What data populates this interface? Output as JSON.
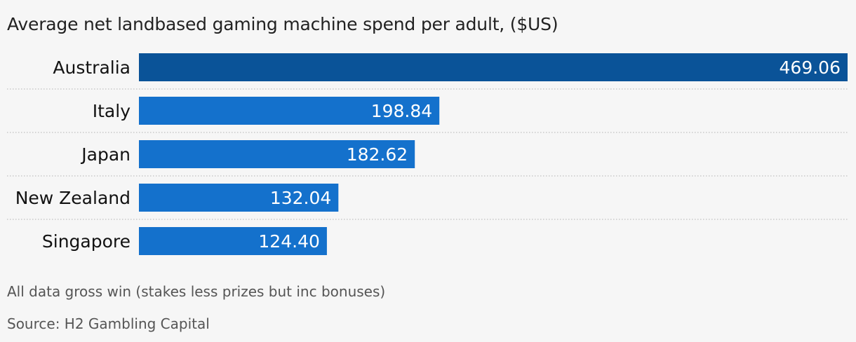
{
  "chart_data": {
    "type": "bar",
    "orientation": "horizontal",
    "title": "Average net landbased gaming machine spend per adult, ($US)",
    "categories": [
      "Australia",
      "Italy",
      "Japan",
      "New Zealand",
      "Singapore"
    ],
    "values": [
      469.06,
      198.84,
      182.62,
      132.04,
      124.4
    ],
    "value_labels": [
      "469.06",
      "198.84",
      "182.62",
      "132.04",
      "124.40"
    ],
    "xlim": [
      0,
      469.06
    ],
    "grid": false,
    "legend": "none",
    "colors": {
      "highlight": "#0a5398",
      "default": "#1471cc",
      "separator": "#c8c8c8",
      "label": "#121212",
      "value_label": "#ffffff"
    }
  },
  "footer": {
    "note": "All data gross win (stakes less prizes but inc bonuses)",
    "source": "Source: H2 Gambling Capital"
  }
}
